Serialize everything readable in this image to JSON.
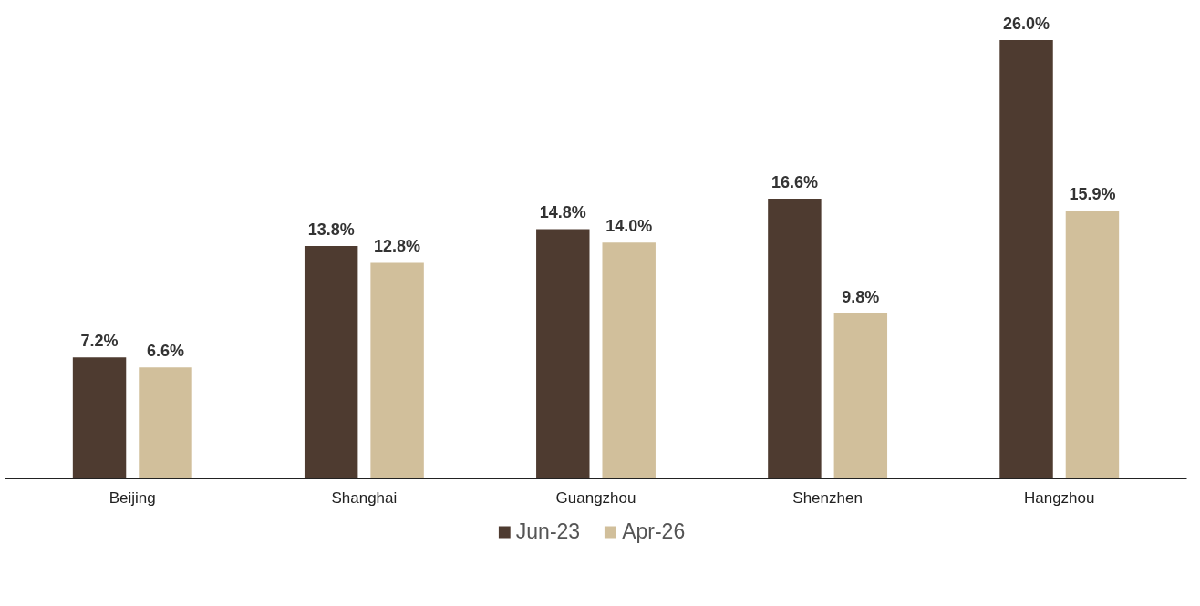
{
  "chart_data": {
    "type": "bar",
    "categories": [
      "Beijing",
      "Shanghai",
      "Guangzhou",
      "Shenzhen",
      "Hangzhou"
    ],
    "series": [
      {
        "name": "Jun-23",
        "color": "#4e3b30",
        "values": [
          7.2,
          13.8,
          14.8,
          16.6,
          26.0
        ],
        "value_labels": [
          "7.2%",
          "13.8%",
          "14.8%",
          "16.6%",
          "26.0%"
        ]
      },
      {
        "name": "Apr-26",
        "color": "#d1bf9b",
        "values": [
          6.6,
          12.8,
          14.0,
          9.8,
          15.9
        ],
        "value_labels": [
          "6.6%",
          "12.8%",
          "14.0%",
          "9.8%",
          "15.9%"
        ]
      }
    ],
    "legend": "bottom",
    "grid": false
  }
}
